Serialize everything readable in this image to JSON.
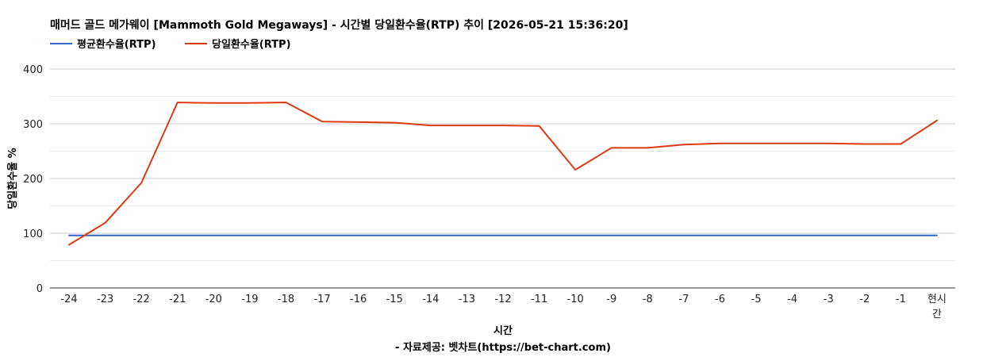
{
  "chart_data": {
    "type": "line",
    "title": "매머드 골드 메가웨이 [Mammoth Gold Megaways] - 시간별 당일환수율(RTP) 추이 [2026-05-21 15:36:20]",
    "xlabel": "시간",
    "ylabel": "당일환수율 %",
    "source": "- 자료제공: 벳차트(https://bet-chart.com)",
    "categories": [
      "-24",
      "-23",
      "-22",
      "-21",
      "-20",
      "-19",
      "-18",
      "-17",
      "-16",
      "-15",
      "-14",
      "-13",
      "-12",
      "-11",
      "-10",
      "-9",
      "-8",
      "-7",
      "-6",
      "-5",
      "-4",
      "-3",
      "-2",
      "-1",
      "현시간"
    ],
    "category_display": [
      "-24",
      "-23",
      "-22",
      "-21",
      "-20",
      "-19",
      "-18",
      "-17",
      "-16",
      "-15",
      "-14",
      "-13",
      "-12",
      "-11",
      "-10",
      "-9",
      "-8",
      "-7",
      "-6",
      "-5",
      "-4",
      "-3",
      "-2",
      "-1",
      [
        "현시",
        "간"
      ]
    ],
    "ylim": [
      0,
      400
    ],
    "yticks": [
      0,
      100,
      200,
      300,
      400
    ],
    "grid": true,
    "legend_position": "top-left",
    "series": [
      {
        "name": "평균환수율(RTP)",
        "color": "#3366cc",
        "values": [
          96,
          96,
          96,
          96,
          96,
          96,
          96,
          96,
          96,
          96,
          96,
          96,
          96,
          96,
          96,
          96,
          96,
          96,
          96,
          96,
          96,
          96,
          96,
          96,
          96
        ]
      },
      {
        "name": "당일환수율(RTP)",
        "color": "#dc3912",
        "values": [
          79,
          119,
          192,
          339,
          338,
          338,
          339,
          304,
          303,
          302,
          297,
          297,
          297,
          296,
          216,
          256,
          256,
          262,
          264,
          264,
          264,
          264,
          263,
          263,
          306
        ]
      }
    ]
  }
}
